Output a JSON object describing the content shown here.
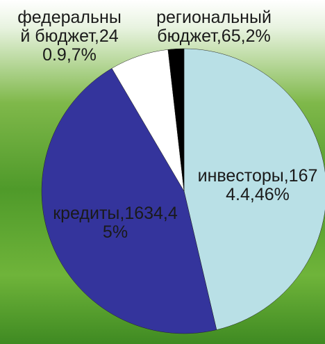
{
  "chart_data": {
    "type": "pie",
    "categories": [
      "инвесторы",
      "кредиты",
      "федеральный бюджет",
      "региональный бюджет"
    ],
    "values": [
      1674.4,
      1634,
      240.9,
      65
    ],
    "labels": [
      "инвесторы,1674.4,46%",
      "кредиты,1634,45%",
      "федеральный бюджет,240.9,7%",
      "региональный бюджет,65,2%"
    ],
    "colors": [
      "#b9e0e6",
      "#34349c",
      "#ffffff",
      "#000000"
    ]
  }
}
